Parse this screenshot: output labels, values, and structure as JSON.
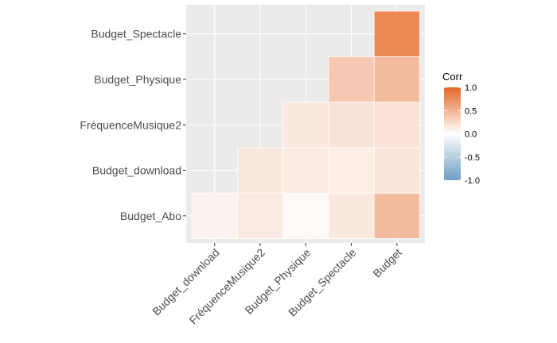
{
  "chart_data": {
    "type": "heatmap",
    "x_categories": [
      "Budget_download",
      "FréquenceMusique2",
      "Budget_Physique",
      "Budget_Spectacle",
      "Budget"
    ],
    "y_categories": [
      "Budget_Abo",
      "Budget_download",
      "FréquenceMusique2",
      "Budget_Physique",
      "Budget_Spectacle"
    ],
    "cells": [
      {
        "x": "Budget_download",
        "y": "Budget_Abo",
        "value": 0.08
      },
      {
        "x": "FréquenceMusique2",
        "y": "Budget_Abo",
        "value": 0.14
      },
      {
        "x": "Budget_Physique",
        "y": "Budget_Abo",
        "value": 0.03
      },
      {
        "x": "Budget_Spectacle",
        "y": "Budget_Abo",
        "value": 0.15
      },
      {
        "x": "Budget",
        "y": "Budget_Abo",
        "value": 0.45
      },
      {
        "x": "FréquenceMusique2",
        "y": "Budget_download",
        "value": 0.15
      },
      {
        "x": "Budget_Physique",
        "y": "Budget_download",
        "value": 0.13
      },
      {
        "x": "Budget_Spectacle",
        "y": "Budget_download",
        "value": 0.11
      },
      {
        "x": "Budget",
        "y": "Budget_download",
        "value": 0.17
      },
      {
        "x": "Budget_Physique",
        "y": "FréquenceMusique2",
        "value": 0.15
      },
      {
        "x": "Budget_Spectacle",
        "y": "FréquenceMusique2",
        "value": 0.18
      },
      {
        "x": "Budget",
        "y": "FréquenceMusique2",
        "value": 0.19
      },
      {
        "x": "Budget_Spectacle",
        "y": "Budget_Physique",
        "value": 0.36
      },
      {
        "x": "Budget",
        "y": "Budget_Physique",
        "value": 0.45
      },
      {
        "x": "Budget",
        "y": "Budget_Spectacle",
        "value": 0.78
      }
    ],
    "legend": {
      "title": "Corr",
      "ticks": [
        "1.0",
        "0.5",
        "0.0",
        "-0.5",
        "-1.0"
      ],
      "tick_values": [
        1.0,
        0.5,
        0.0,
        -0.5,
        -1.0
      ],
      "range": [
        -1.0,
        1.0
      ],
      "placement": "right"
    },
    "colors": {
      "low": "#6d9ec1",
      "mid": "#ffffff",
      "high": "#e46726",
      "panel_background": "#ebebeb",
      "grid": "#ffffff",
      "tick_text": "#4d4d4d"
    },
    "grid": true
  }
}
